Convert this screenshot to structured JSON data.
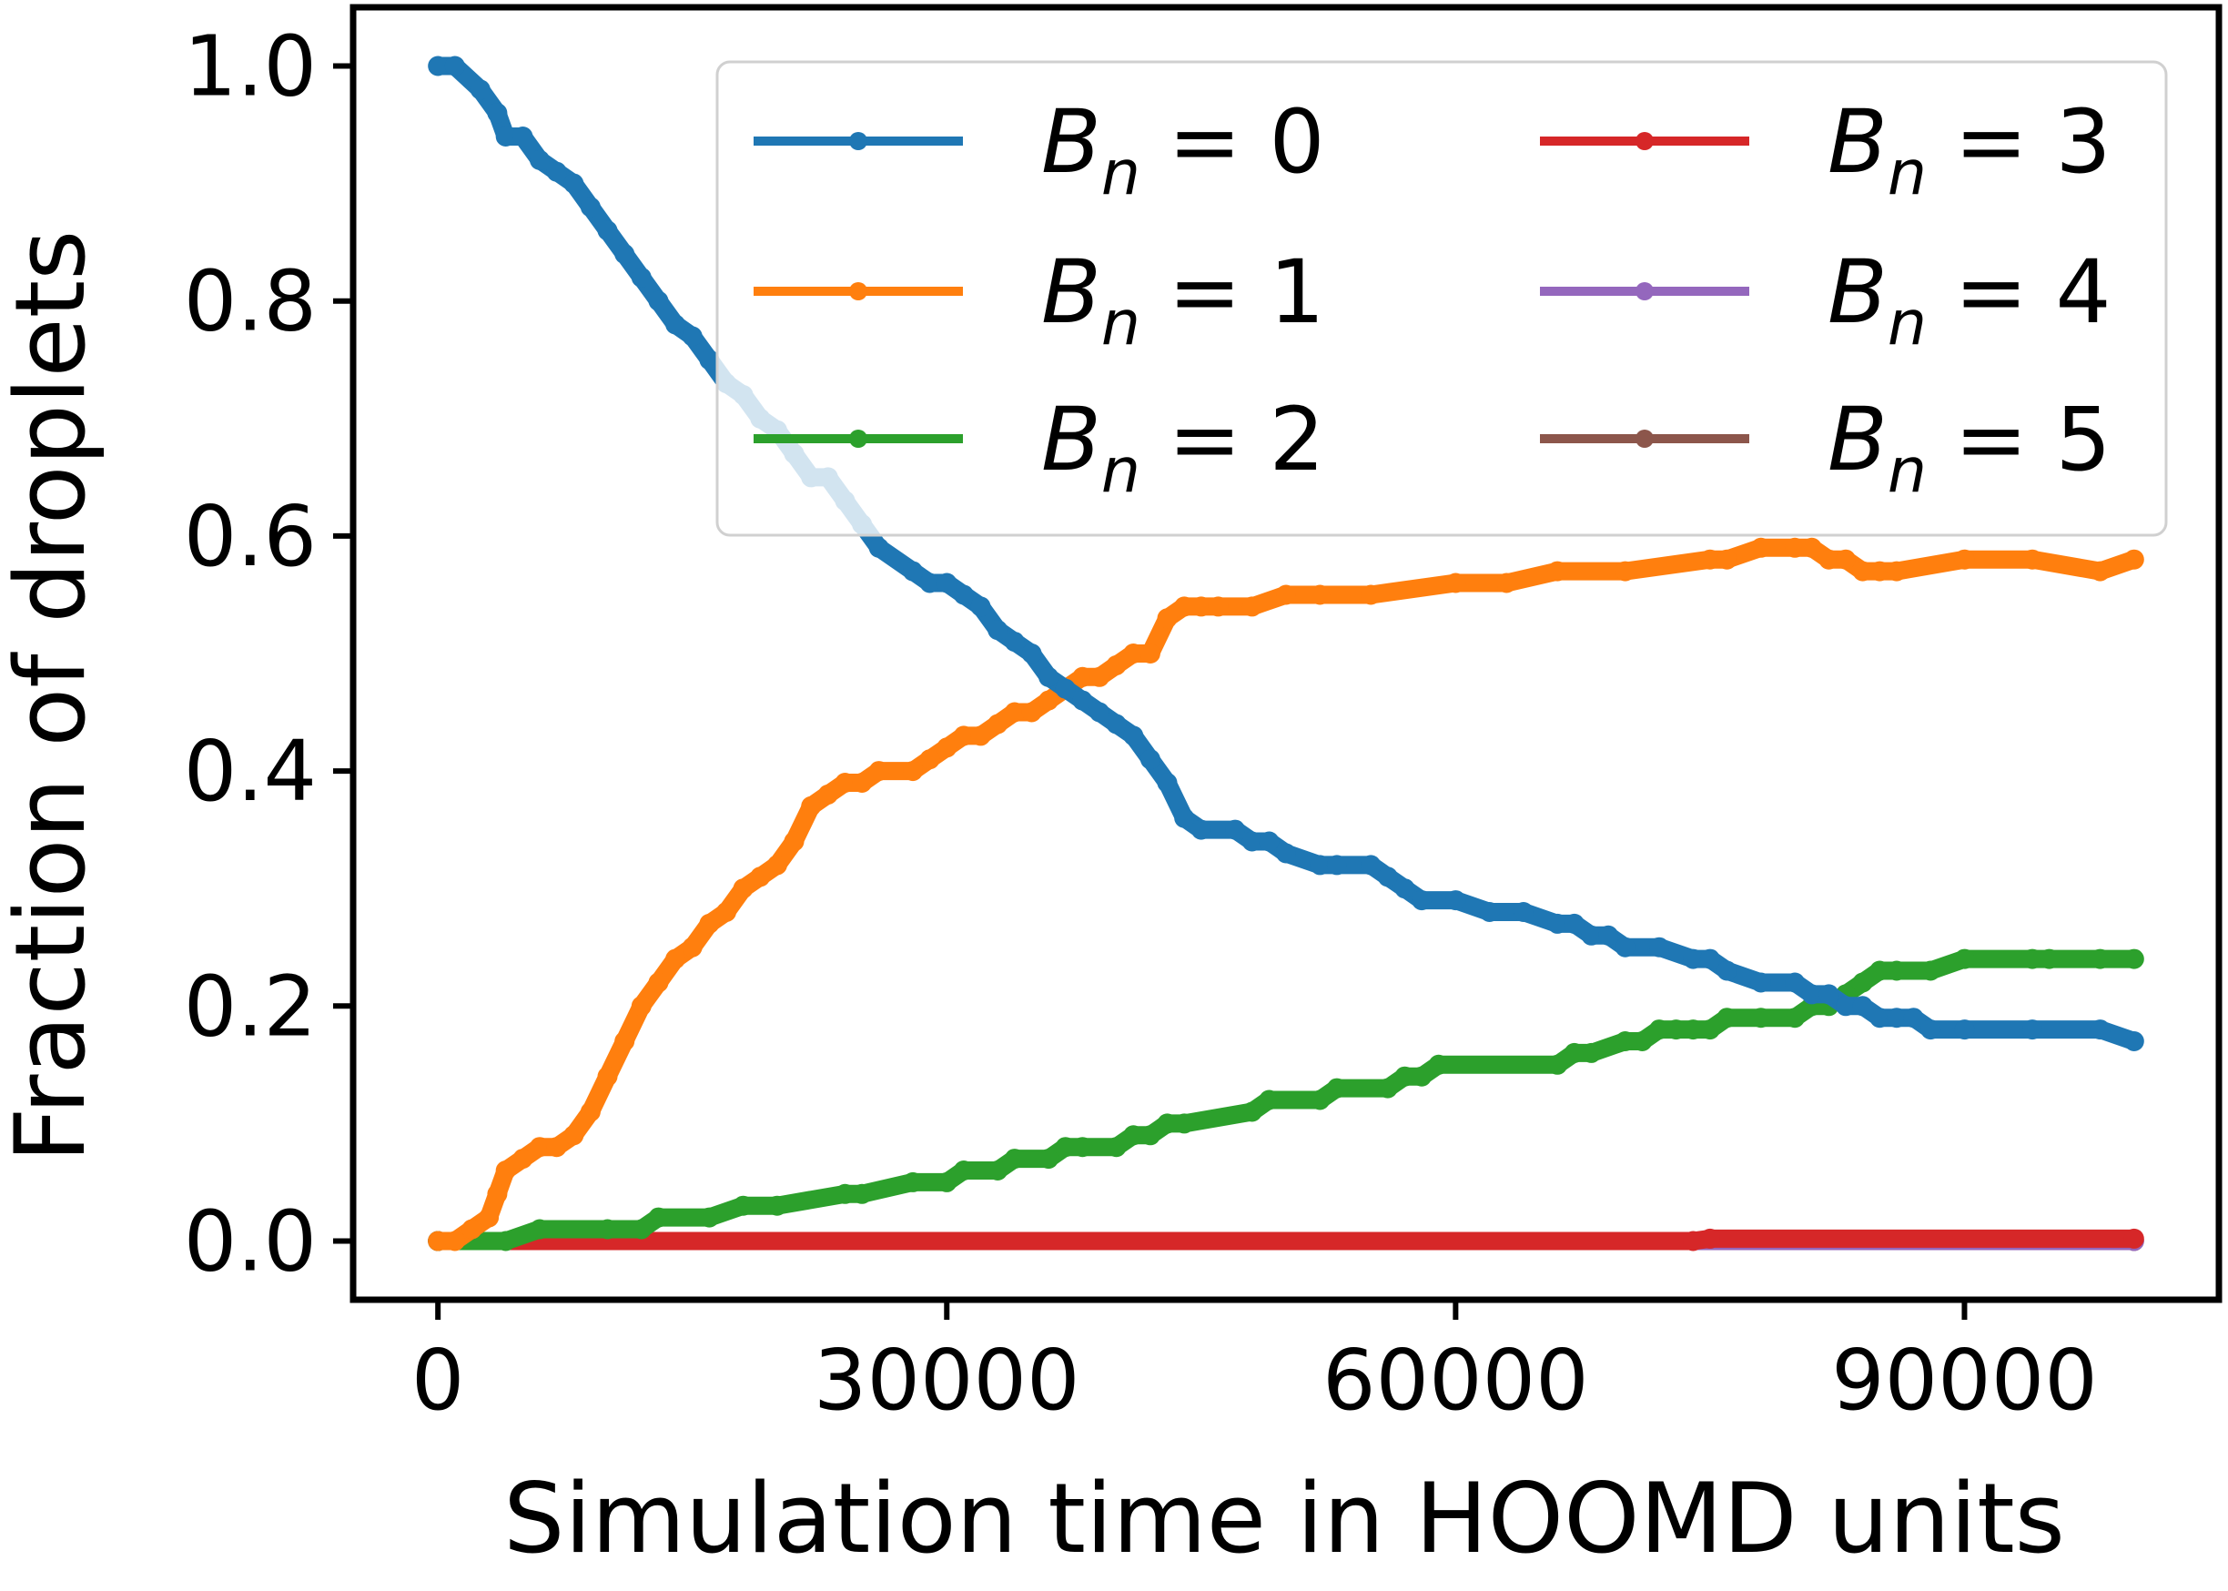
{
  "chart_data": {
    "type": "line",
    "title": "",
    "xlabel": "Simulation time in HOOMD units",
    "ylabel": "Fraction of droplets",
    "xlim": [
      -5000,
      105000
    ],
    "ylim": [
      -0.05,
      1.05
    ],
    "xticks": [
      0,
      30000,
      60000,
      90000
    ],
    "xtick_labels": [
      "0",
      "30000",
      "60000",
      "90000"
    ],
    "yticks": [
      0.0,
      0.2,
      0.4,
      0.6,
      0.8,
      1.0
    ],
    "ytick_labels": [
      "0.0",
      "0.2",
      "0.4",
      "0.6",
      "0.8",
      "1.0"
    ],
    "grid": false,
    "legend_position": "top-right",
    "legend_columns": 2,
    "legend_symbol": "B",
    "legend_subscript": "n",
    "series": [
      {
        "name": "B_n = 0",
        "legend_label": "= 0",
        "color": "#1f77b4",
        "x": [
          0,
          1000,
          2500,
          3500,
          4000,
          5000,
          6000,
          7000,
          8000,
          9000,
          10000,
          11000,
          12000,
          13000,
          14000,
          15000,
          16000,
          17000,
          18000,
          19000,
          20000,
          21000,
          22000,
          23000,
          24000,
          25000,
          26000,
          28000,
          29000,
          30000,
          31000,
          32000,
          33000,
          34000,
          35000,
          36000,
          37000,
          38000,
          39000,
          40000,
          41000,
          42000,
          43000,
          44000,
          45000,
          47000,
          48000,
          49000,
          50000,
          52000,
          53000,
          55000,
          56000,
          57000,
          58000,
          60000,
          62000,
          64000,
          66000,
          67000,
          68000,
          69000,
          70000,
          72000,
          74000,
          75000,
          76000,
          78000,
          80000,
          81000,
          82000,
          83000,
          84000,
          85000,
          86000,
          87000,
          88000,
          90000,
          94000,
          98000,
          100000
        ],
        "y": [
          1.0,
          1.0,
          0.98,
          0.96,
          0.94,
          0.94,
          0.92,
          0.91,
          0.9,
          0.88,
          0.86,
          0.84,
          0.82,
          0.8,
          0.78,
          0.77,
          0.75,
          0.73,
          0.72,
          0.7,
          0.69,
          0.67,
          0.65,
          0.65,
          0.63,
          0.61,
          0.59,
          0.57,
          0.56,
          0.56,
          0.55,
          0.54,
          0.52,
          0.51,
          0.5,
          0.48,
          0.47,
          0.46,
          0.45,
          0.44,
          0.43,
          0.41,
          0.39,
          0.36,
          0.35,
          0.35,
          0.34,
          0.34,
          0.33,
          0.32,
          0.32,
          0.32,
          0.31,
          0.3,
          0.29,
          0.29,
          0.28,
          0.28,
          0.27,
          0.27,
          0.26,
          0.26,
          0.25,
          0.25,
          0.24,
          0.24,
          0.23,
          0.22,
          0.22,
          0.21,
          0.21,
          0.2,
          0.2,
          0.19,
          0.19,
          0.19,
          0.18,
          0.18,
          0.18,
          0.18,
          0.17
        ]
      },
      {
        "name": "B_n = 1",
        "legend_label": "= 1",
        "color": "#ff7f0e",
        "x": [
          0,
          1000,
          2000,
          3000,
          3500,
          4000,
          5000,
          6000,
          7000,
          8000,
          9000,
          10000,
          11000,
          12000,
          13000,
          14000,
          15000,
          16000,
          17000,
          18000,
          19000,
          20000,
          21000,
          22000,
          23000,
          24000,
          25000,
          26000,
          28000,
          29000,
          30000,
          31000,
          32000,
          33000,
          34000,
          35000,
          36000,
          37000,
          38000,
          39000,
          40000,
          41000,
          42000,
          43000,
          44000,
          45000,
          46000,
          48000,
          50000,
          52000,
          55000,
          60000,
          63000,
          66000,
          70000,
          75000,
          76000,
          78000,
          80000,
          81000,
          82000,
          83000,
          84000,
          85000,
          86000,
          90000,
          94000,
          98000,
          100000
        ],
        "y": [
          0.0,
          0.0,
          0.01,
          0.02,
          0.04,
          0.06,
          0.07,
          0.08,
          0.08,
          0.09,
          0.11,
          0.14,
          0.17,
          0.2,
          0.22,
          0.24,
          0.25,
          0.27,
          0.28,
          0.3,
          0.31,
          0.32,
          0.34,
          0.37,
          0.38,
          0.39,
          0.39,
          0.4,
          0.4,
          0.41,
          0.42,
          0.43,
          0.43,
          0.44,
          0.45,
          0.45,
          0.46,
          0.47,
          0.48,
          0.48,
          0.49,
          0.5,
          0.5,
          0.53,
          0.54,
          0.54,
          0.54,
          0.54,
          0.55,
          0.55,
          0.55,
          0.56,
          0.56,
          0.57,
          0.57,
          0.58,
          0.58,
          0.59,
          0.59,
          0.59,
          0.58,
          0.58,
          0.57,
          0.57,
          0.57,
          0.58,
          0.58,
          0.57,
          0.58
        ]
      },
      {
        "name": "B_n = 2",
        "legend_label": "= 2",
        "color": "#2ca02c",
        "x": [
          0,
          4000,
          6000,
          10000,
          12000,
          13000,
          16000,
          18000,
          20000,
          24000,
          25000,
          28000,
          30000,
          31000,
          33000,
          34000,
          36000,
          37000,
          38000,
          40000,
          41000,
          42000,
          43000,
          44000,
          48000,
          49000,
          52000,
          53000,
          56000,
          57000,
          58000,
          59000,
          66000,
          67000,
          68000,
          70000,
          71000,
          72000,
          73000,
          74000,
          75000,
          76000,
          78000,
          80000,
          81000,
          82000,
          83000,
          84000,
          85000,
          86000,
          88000,
          90000,
          94000,
          95000,
          98000,
          100000
        ],
        "y": [
          0.0,
          0.0,
          0.01,
          0.01,
          0.01,
          0.02,
          0.02,
          0.03,
          0.03,
          0.04,
          0.04,
          0.05,
          0.05,
          0.06,
          0.06,
          0.07,
          0.07,
          0.08,
          0.08,
          0.08,
          0.09,
          0.09,
          0.1,
          0.1,
          0.11,
          0.12,
          0.12,
          0.13,
          0.13,
          0.14,
          0.14,
          0.15,
          0.15,
          0.16,
          0.16,
          0.17,
          0.17,
          0.18,
          0.18,
          0.18,
          0.18,
          0.19,
          0.19,
          0.19,
          0.2,
          0.2,
          0.21,
          0.22,
          0.23,
          0.23,
          0.23,
          0.24,
          0.24,
          0.24,
          0.24,
          0.24
        ]
      },
      {
        "name": "B_n = 3",
        "legend_label": "= 3",
        "color": "#d62728",
        "x": [
          0,
          74000,
          75000,
          100000
        ],
        "y": [
          0.0,
          0.0,
          0.002,
          0.002
        ]
      },
      {
        "name": "B_n = 4",
        "legend_label": "= 4",
        "color": "#9467bd",
        "x": [
          0,
          100000
        ],
        "y": [
          0.0,
          0.0
        ]
      },
      {
        "name": "B_n = 5",
        "legend_label": "= 5",
        "color": "#8c564b",
        "x": [
          0,
          100000
        ],
        "y": [
          0.0,
          0.0
        ]
      }
    ]
  }
}
